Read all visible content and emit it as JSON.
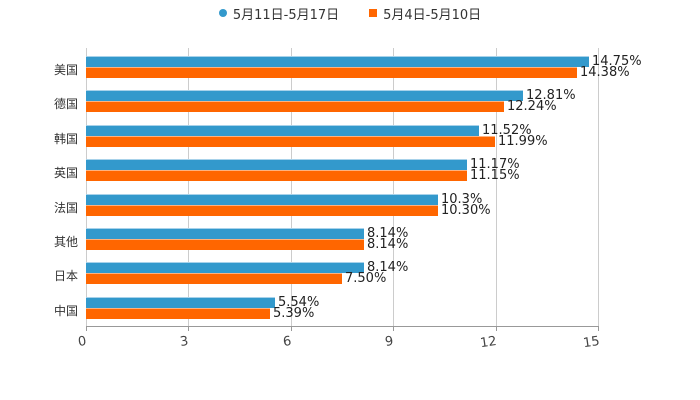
{
  "legend": [
    {
      "label": "5月11日-5月17日",
      "color": "#3399CC",
      "shape": "circle"
    },
    {
      "label": "5月4日-5月10日",
      "color": "#FF6600",
      "shape": "square"
    }
  ],
  "xaxis": {
    "ticks": [
      "0",
      "3",
      "6",
      "9",
      "12",
      "15"
    ]
  },
  "rows": [
    {
      "category": "美国",
      "v1": 14.75,
      "l1": "14.75%",
      "v2": 14.38,
      "l2": "14.38%"
    },
    {
      "category": "德国",
      "v1": 12.81,
      "l1": "12.81%",
      "v2": 12.24,
      "l2": "12.24%"
    },
    {
      "category": "韩国",
      "v1": 11.52,
      "l1": "11.52%",
      "v2": 11.99,
      "l2": "11.99%"
    },
    {
      "category": "英国",
      "v1": 11.17,
      "l1": "11.17%",
      "v2": 11.15,
      "l2": "11.15%"
    },
    {
      "category": "法国",
      "v1": 10.3,
      "l1": "10.3%",
      "v2": 10.3,
      "l2": "10.30%"
    },
    {
      "category": "其他",
      "v1": 8.14,
      "l1": "8.14%",
      "v2": 8.14,
      "l2": "8.14%"
    },
    {
      "category": "日本",
      "v1": 8.14,
      "l1": "8.14%",
      "v2": 7.5,
      "l2": "7.50%"
    },
    {
      "category": "中国",
      "v1": 5.54,
      "l1": "5.54%",
      "v2": 5.39,
      "l2": "5.39%"
    }
  ],
  "chart_data": {
    "type": "bar",
    "orientation": "horizontal",
    "title": "",
    "xlabel": "",
    "ylabel": "",
    "xlim": [
      0,
      15
    ],
    "xticks": [
      0,
      3,
      6,
      9,
      12,
      15
    ],
    "grid": true,
    "legend_position": "top",
    "categories": [
      "美国",
      "德国",
      "韩国",
      "英国",
      "法国",
      "其他",
      "日本",
      "中国"
    ],
    "series": [
      {
        "name": "5月11日-5月17日",
        "color": "#3399CC",
        "values": [
          14.75,
          12.81,
          11.52,
          11.17,
          10.3,
          8.14,
          8.14,
          5.54
        ]
      },
      {
        "name": "5月4日-5月10日",
        "color": "#FF6600",
        "values": [
          14.38,
          12.24,
          11.99,
          11.15,
          10.3,
          8.14,
          7.5,
          5.39
        ]
      }
    ],
    "data_labels": {
      "5月11日-5月17日": [
        "14.75%",
        "12.81%",
        "11.52%",
        "11.17%",
        "10.3%",
        "8.14%",
        "8.14%",
        "5.54%"
      ],
      "5月4日-5月10日": [
        "14.38%",
        "12.24%",
        "11.99%",
        "11.15%",
        "10.30%",
        "8.14%",
        "7.50%",
        "5.39%"
      ]
    }
  }
}
